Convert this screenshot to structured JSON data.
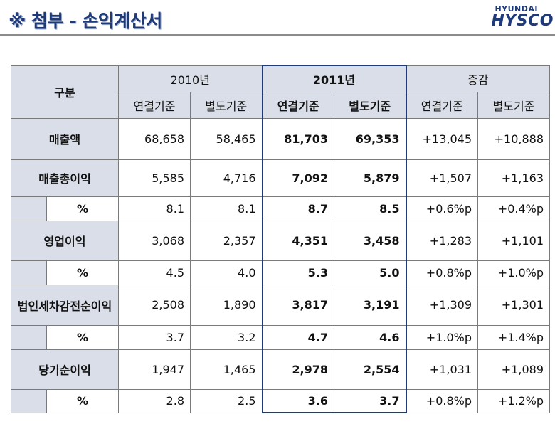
{
  "header": {
    "title": "※ 첨부 - 손익계산서",
    "logo_top": "HYUNDAI",
    "logo_main": "HYSCO"
  },
  "table": {
    "label_header": "구분",
    "groups": [
      "2010년",
      "2011년",
      "증감"
    ],
    "subheaders": [
      "연결기준",
      "별도기준",
      "연결기준",
      "별도기준",
      "연결기준",
      "별도기준"
    ],
    "rows": [
      {
        "label": "매출액",
        "values": [
          "68,658",
          "58,465",
          "81,703",
          "69,353",
          "+13,045",
          "+10,888"
        ]
      },
      {
        "label": "매출총이익",
        "values": [
          "5,585",
          "4,716",
          "7,092",
          "5,879",
          "+1,507",
          "+1,163"
        ]
      },
      {
        "label": "%",
        "values": [
          "8.1",
          "8.1",
          "8.7",
          "8.5",
          "+0.6%p",
          "+0.4%p"
        ]
      },
      {
        "label": "영업이익",
        "values": [
          "3,068",
          "2,357",
          "4,351",
          "3,458",
          "+1,283",
          "+1,101"
        ]
      },
      {
        "label": "%",
        "values": [
          "4.5",
          "4.0",
          "5.3",
          "5.0",
          "+0.8%p",
          "+1.0%p"
        ]
      },
      {
        "label": "법인세차감전순이익",
        "values": [
          "2,508",
          "1,890",
          "3,817",
          "3,191",
          "+1,309",
          "+1,301"
        ]
      },
      {
        "label": "%",
        "values": [
          "3.7",
          "3.2",
          "4.7",
          "4.6",
          "+1.0%p",
          "+1.4%p"
        ]
      },
      {
        "label": "당기순이익",
        "values": [
          "1,947",
          "1,465",
          "2,978",
          "2,554",
          "+1,031",
          "+1,089"
        ]
      },
      {
        "label": "%",
        "values": [
          "2.8",
          "2.5",
          "3.6",
          "3.7",
          "+0.8%p",
          "+1.2%p"
        ]
      }
    ]
  }
}
